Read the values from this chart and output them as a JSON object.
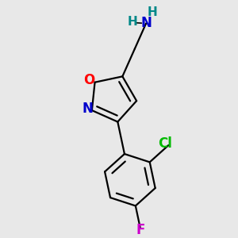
{
  "bg_color": "#e8e8e8",
  "bond_color": "#000000",
  "bond_width": 1.6,
  "atom_colors": {
    "O": "#ff0000",
    "N": "#0000cc",
    "Cl": "#00bb00",
    "F": "#cc00cc",
    "NH2_H": "#008888",
    "NH2_N": "#0000cc"
  },
  "font_size_atoms": 12,
  "font_size_h": 11
}
